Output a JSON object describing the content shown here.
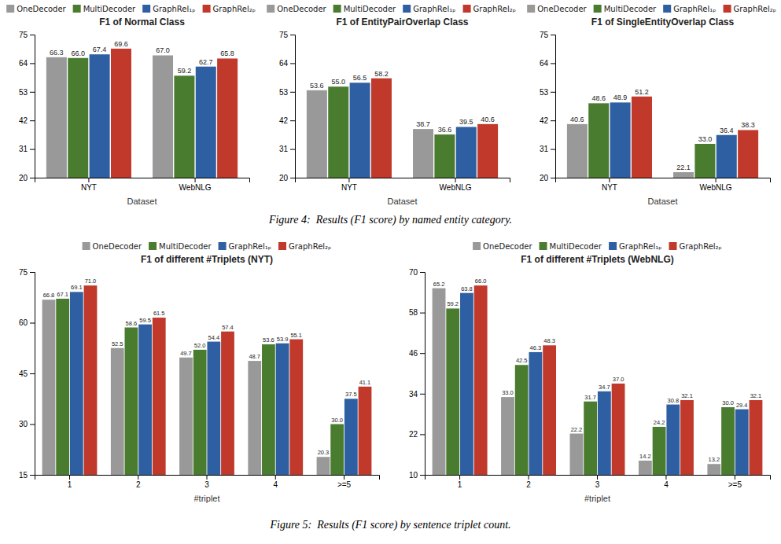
{
  "chart_data": [
    {
      "type": "bar",
      "title": "F1 of Normal Class",
      "x_label": "Dataset",
      "categories": [
        "NYT",
        "WebNLG"
      ],
      "ylim": [
        20,
        75
      ],
      "yticks": [
        20,
        31,
        42,
        53,
        64,
        75
      ],
      "grid": false,
      "legend": "top",
      "data_labels": true,
      "annotations": [
        "Figure 4:  Results (F1 score) by named entity category."
      ],
      "series": [
        {
          "name": "OneDecoder",
          "color": "#999999",
          "values": [
            66.3,
            67.0
          ],
          "value_labels": [
            "66.3",
            "67.0"
          ]
        },
        {
          "name": "MultiDecoder",
          "color": "#4a7c2f",
          "values": [
            66.0,
            59.2
          ],
          "value_labels": [
            "66.0",
            "59.2"
          ]
        },
        {
          "name": "GraphRel₁ₚ",
          "color": "#2e5fa3",
          "values": [
            67.4,
            62.7
          ],
          "value_labels": [
            "67.4",
            "62.7"
          ]
        },
        {
          "name": "GraphRel₂ₚ",
          "color": "#c0392b",
          "values": [
            69.6,
            65.8
          ],
          "value_labels": [
            "69.6",
            "65.8"
          ]
        }
      ]
    },
    {
      "type": "bar",
      "title": "F1 of EntityPairOverlap Class",
      "x_label": "Dataset",
      "categories": [
        "NYT",
        "WebNLG"
      ],
      "ylim": [
        20,
        75
      ],
      "yticks": [
        20,
        31,
        42,
        53,
        64,
        75
      ],
      "grid": false,
      "legend": "top",
      "data_labels": true,
      "series": [
        {
          "name": "OneDecoder",
          "color": "#999999",
          "values": [
            53.6,
            38.7
          ],
          "value_labels": [
            "53.6",
            "38.7"
          ]
        },
        {
          "name": "MultiDecoder",
          "color": "#4a7c2f",
          "values": [
            55.0,
            36.6
          ],
          "value_labels": [
            "55.0",
            "36.6"
          ]
        },
        {
          "name": "GraphRel₁ₚ",
          "color": "#2e5fa3",
          "values": [
            56.5,
            39.5
          ],
          "value_labels": [
            "56.5",
            "39.5"
          ]
        },
        {
          "name": "GraphRel₂ₚ",
          "color": "#c0392b",
          "values": [
            58.2,
            40.6
          ],
          "value_labels": [
            "58.2",
            "40.6"
          ]
        }
      ]
    },
    {
      "type": "bar",
      "title": "F1 of SingleEntityOverlap Class",
      "x_label": "Dataset",
      "categories": [
        "NYT",
        "WebNLG"
      ],
      "ylim": [
        20,
        75
      ],
      "yticks": [
        20,
        31,
        42,
        53,
        64,
        75
      ],
      "grid": false,
      "legend": "top",
      "data_labels": true,
      "series": [
        {
          "name": "OneDecoder",
          "color": "#999999",
          "values": [
            40.6,
            22.1
          ],
          "value_labels": [
            "40.6",
            "22.1"
          ]
        },
        {
          "name": "MultiDecoder",
          "color": "#4a7c2f",
          "values": [
            48.6,
            33.0
          ],
          "value_labels": [
            "48.6",
            "33.0"
          ]
        },
        {
          "name": "GraphRel₁ₚ",
          "color": "#2e5fa3",
          "values": [
            48.9,
            36.4
          ],
          "value_labels": [
            "48.9",
            "36.4"
          ]
        },
        {
          "name": "GraphRel₂ₚ",
          "color": "#c0392b",
          "values": [
            51.2,
            38.3
          ],
          "value_labels": [
            "51.2",
            "38.3"
          ]
        }
      ]
    },
    {
      "type": "bar",
      "title": "F1 of different #Triplets (NYT)",
      "x_label": "#triplet",
      "categories": [
        "1",
        "2",
        "3",
        "4",
        ">=5"
      ],
      "ylim": [
        15,
        75
      ],
      "yticks": [
        15,
        30,
        45,
        60,
        75
      ],
      "grid": false,
      "legend": "top",
      "data_labels": true,
      "annotations": [
        "Figure 5:  Results (F1 score) by sentence triplet count."
      ],
      "series": [
        {
          "name": "OneDecoder",
          "color": "#999999",
          "values": [
            66.8,
            52.5,
            49.7,
            48.7,
            20.3
          ],
          "value_labels": [
            "66.8",
            "52.5",
            "49.7",
            "48.7",
            "20.3"
          ]
        },
        {
          "name": "MultiDecoder",
          "color": "#4a7c2f",
          "values": [
            67.1,
            58.6,
            52.0,
            53.6,
            30.0
          ],
          "value_labels": [
            "67.1",
            "58.6",
            "52.0",
            "53.6",
            "30.0"
          ]
        },
        {
          "name": "GraphRel₁ₚ",
          "color": "#2e5fa3",
          "values": [
            69.1,
            59.5,
            54.4,
            53.9,
            37.5
          ],
          "value_labels": [
            "69.1",
            "59.5",
            "54.4",
            "53.9",
            "37.5"
          ]
        },
        {
          "name": "GraphRel₂ₚ",
          "color": "#c0392b",
          "values": [
            71.0,
            61.5,
            57.4,
            55.1,
            41.1
          ],
          "value_labels": [
            "71.0",
            "61.5",
            "57.4",
            "55.1",
            "41.1"
          ]
        }
      ]
    },
    {
      "type": "bar",
      "title": "F1 of different #Triplets (WebNLG)",
      "x_label": "#triplet",
      "categories": [
        "1",
        "2",
        "3",
        "4",
        ">=5"
      ],
      "ylim": [
        10,
        70
      ],
      "yticks": [
        10,
        22,
        34,
        46,
        58,
        70
      ],
      "grid": false,
      "legend": "top",
      "data_labels": true,
      "series": [
        {
          "name": "OneDecoder",
          "color": "#999999",
          "values": [
            65.2,
            33.0,
            22.2,
            14.2,
            13.2
          ],
          "value_labels": [
            "65.2",
            "33.0",
            "22.2",
            "14.2",
            "13.2"
          ]
        },
        {
          "name": "MultiDecoder",
          "color": "#4a7c2f",
          "values": [
            59.2,
            42.5,
            31.7,
            24.2,
            30.0
          ],
          "value_labels": [
            "59.2",
            "42.5",
            "31.7",
            "24.2",
            "30.0"
          ]
        },
        {
          "name": "GraphRel₁ₚ",
          "color": "#2e5fa3",
          "values": [
            63.8,
            46.3,
            34.7,
            30.8,
            29.4
          ],
          "value_labels": [
            "63.8",
            "46.3",
            "34.7",
            "30.8",
            "29.4"
          ]
        },
        {
          "name": "GraphRel₂ₚ",
          "color": "#c0392b",
          "values": [
            66.0,
            48.3,
            37.0,
            32.1,
            32.1
          ],
          "value_labels": [
            "66.0",
            "48.3",
            "37.0",
            "32.1",
            "32.1"
          ]
        }
      ]
    }
  ]
}
